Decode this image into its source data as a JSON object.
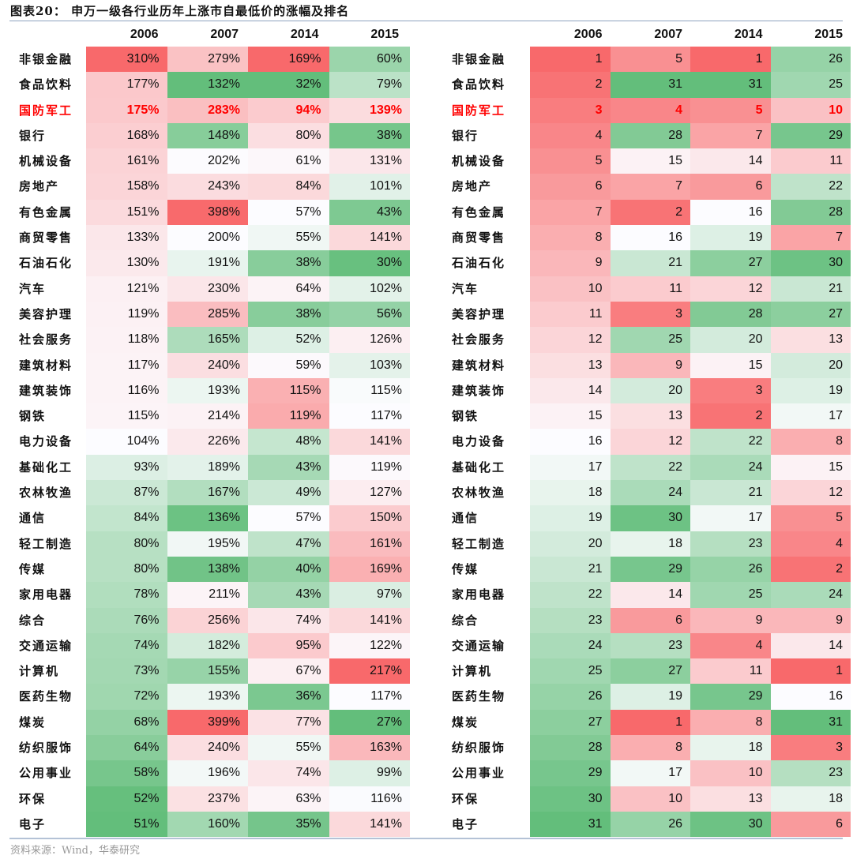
{
  "title": "图表20：  申万一级各行业历年上涨市自最低价的涨幅及排名",
  "source": "资料来源：Wind，华泰研究",
  "years": [
    "2006",
    "2007",
    "2014",
    "2015"
  ],
  "highlight_color": "#ff0000",
  "scale_colors": {
    "high": "#f8696b",
    "mid": "#fcfcff",
    "low": "#63be7b"
  },
  "rows": [
    {
      "industry": "非银金融",
      "gain": [
        "310%",
        "279%",
        "169%",
        "60%"
      ],
      "rank": [
        "1",
        "5",
        "1",
        "26"
      ]
    },
    {
      "industry": "食品饮料",
      "gain": [
        "177%",
        "132%",
        "32%",
        "79%"
      ],
      "rank": [
        "2",
        "31",
        "31",
        "25"
      ]
    },
    {
      "industry": "国防军工",
      "gain": [
        "175%",
        "283%",
        "94%",
        "139%"
      ],
      "rank": [
        "3",
        "4",
        "5",
        "10"
      ],
      "highlight": true
    },
    {
      "industry": "银行",
      "gain": [
        "168%",
        "148%",
        "80%",
        "38%"
      ],
      "rank": [
        "4",
        "28",
        "7",
        "29"
      ]
    },
    {
      "industry": "机械设备",
      "gain": [
        "161%",
        "202%",
        "61%",
        "131%"
      ],
      "rank": [
        "5",
        "15",
        "14",
        "11"
      ]
    },
    {
      "industry": "房地产",
      "gain": [
        "158%",
        "243%",
        "84%",
        "101%"
      ],
      "rank": [
        "6",
        "7",
        "6",
        "22"
      ]
    },
    {
      "industry": "有色金属",
      "gain": [
        "151%",
        "398%",
        "57%",
        "43%"
      ],
      "rank": [
        "7",
        "2",
        "16",
        "28"
      ]
    },
    {
      "industry": "商贸零售",
      "gain": [
        "133%",
        "200%",
        "55%",
        "141%"
      ],
      "rank": [
        "8",
        "16",
        "19",
        "7"
      ]
    },
    {
      "industry": "石油石化",
      "gain": [
        "130%",
        "191%",
        "38%",
        "30%"
      ],
      "rank": [
        "9",
        "21",
        "27",
        "30"
      ]
    },
    {
      "industry": "汽车",
      "gain": [
        "121%",
        "230%",
        "64%",
        "102%"
      ],
      "rank": [
        "10",
        "11",
        "12",
        "21"
      ]
    },
    {
      "industry": "美容护理",
      "gain": [
        "119%",
        "285%",
        "38%",
        "56%"
      ],
      "rank": [
        "11",
        "3",
        "28",
        "27"
      ]
    },
    {
      "industry": "社会服务",
      "gain": [
        "118%",
        "165%",
        "52%",
        "126%"
      ],
      "rank": [
        "12",
        "25",
        "20",
        "13"
      ]
    },
    {
      "industry": "建筑材料",
      "gain": [
        "117%",
        "240%",
        "59%",
        "103%"
      ],
      "rank": [
        "13",
        "9",
        "15",
        "20"
      ]
    },
    {
      "industry": "建筑装饰",
      "gain": [
        "116%",
        "193%",
        "115%",
        "115%"
      ],
      "rank": [
        "14",
        "20",
        "3",
        "19"
      ]
    },
    {
      "industry": "钢铁",
      "gain": [
        "115%",
        "214%",
        "119%",
        "117%"
      ],
      "rank": [
        "15",
        "13",
        "2",
        "17"
      ]
    },
    {
      "industry": "电力设备",
      "gain": [
        "104%",
        "226%",
        "48%",
        "141%"
      ],
      "rank": [
        "16",
        "12",
        "22",
        "8"
      ]
    },
    {
      "industry": "基础化工",
      "gain": [
        "93%",
        "189%",
        "43%",
        "119%"
      ],
      "rank": [
        "17",
        "22",
        "24",
        "15"
      ]
    },
    {
      "industry": "农林牧渔",
      "gain": [
        "87%",
        "167%",
        "49%",
        "127%"
      ],
      "rank": [
        "18",
        "24",
        "21",
        "12"
      ]
    },
    {
      "industry": "通信",
      "gain": [
        "84%",
        "136%",
        "57%",
        "150%"
      ],
      "rank": [
        "19",
        "30",
        "17",
        "5"
      ]
    },
    {
      "industry": "轻工制造",
      "gain": [
        "80%",
        "195%",
        "47%",
        "161%"
      ],
      "rank": [
        "20",
        "18",
        "23",
        "4"
      ]
    },
    {
      "industry": "传媒",
      "gain": [
        "80%",
        "138%",
        "40%",
        "169%"
      ],
      "rank": [
        "21",
        "29",
        "26",
        "2"
      ]
    },
    {
      "industry": "家用电器",
      "gain": [
        "78%",
        "211%",
        "43%",
        "97%"
      ],
      "rank": [
        "22",
        "14",
        "25",
        "24"
      ]
    },
    {
      "industry": "综合",
      "gain": [
        "76%",
        "256%",
        "74%",
        "141%"
      ],
      "rank": [
        "23",
        "6",
        "9",
        "9"
      ]
    },
    {
      "industry": "交通运输",
      "gain": [
        "74%",
        "182%",
        "95%",
        "122%"
      ],
      "rank": [
        "24",
        "23",
        "4",
        "14"
      ]
    },
    {
      "industry": "计算机",
      "gain": [
        "73%",
        "155%",
        "67%",
        "217%"
      ],
      "rank": [
        "25",
        "27",
        "11",
        "1"
      ]
    },
    {
      "industry": "医药生物",
      "gain": [
        "72%",
        "193%",
        "36%",
        "117%"
      ],
      "rank": [
        "26",
        "19",
        "29",
        "16"
      ]
    },
    {
      "industry": "煤炭",
      "gain": [
        "68%",
        "399%",
        "77%",
        "27%"
      ],
      "rank": [
        "27",
        "1",
        "8",
        "31"
      ]
    },
    {
      "industry": "纺织服饰",
      "gain": [
        "64%",
        "240%",
        "55%",
        "163%"
      ],
      "rank": [
        "28",
        "8",
        "18",
        "3"
      ]
    },
    {
      "industry": "公用事业",
      "gain": [
        "58%",
        "196%",
        "74%",
        "99%"
      ],
      "rank": [
        "29",
        "17",
        "10",
        "23"
      ]
    },
    {
      "industry": "环保",
      "gain": [
        "52%",
        "237%",
        "63%",
        "116%"
      ],
      "rank": [
        "30",
        "10",
        "13",
        "18"
      ]
    },
    {
      "industry": "电子",
      "gain": [
        "51%",
        "160%",
        "35%",
        "141%"
      ],
      "rank": [
        "31",
        "26",
        "30",
        "6"
      ]
    }
  ]
}
